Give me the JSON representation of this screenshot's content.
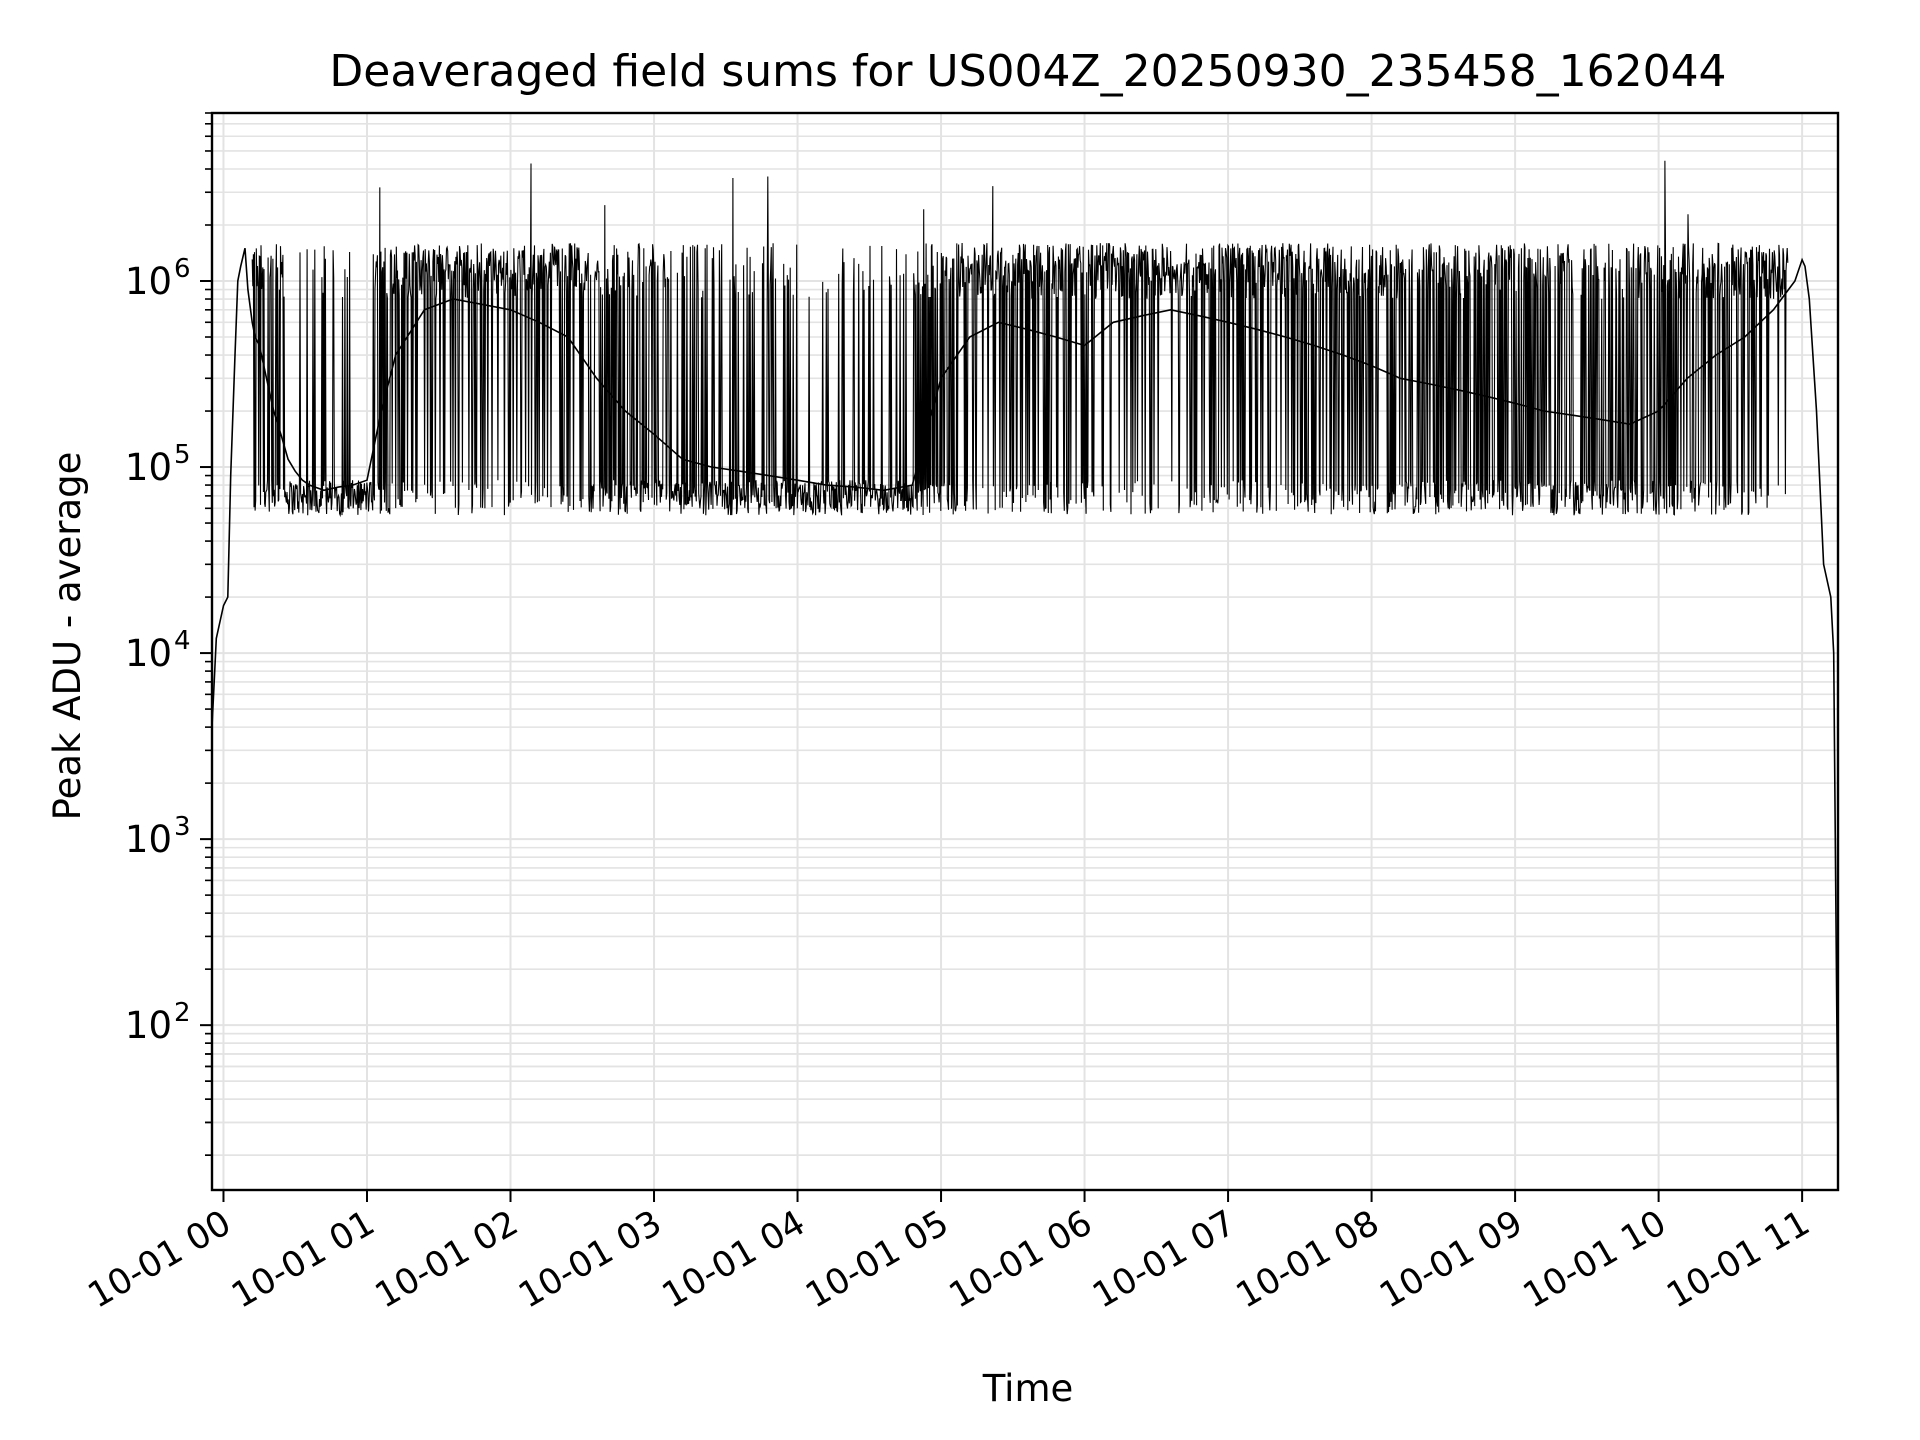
{
  "chart_data": {
    "type": "line",
    "title": "Deaveraged field sums for US004Z_20250930_235458_162044",
    "xlabel": "Time",
    "ylabel": "Peak ADU - average",
    "yscale": "log",
    "ylim": [
      13,
      8000000
    ],
    "xlim_hours": [
      -0.08,
      11.25
    ],
    "grid": true,
    "line_color": "#000000",
    "grid_color": "#e3e3e3",
    "x_tick_labels": [
      "10-01 00",
      "10-01 01",
      "10-01 02",
      "10-01 03",
      "10-01 04",
      "10-01 05",
      "10-01 06",
      "10-01 07",
      "10-01 08",
      "10-01 09",
      "10-01 10",
      "10-01 11"
    ],
    "y_ticks": [
      {
        "base": "10",
        "exp": "2",
        "value": 100
      },
      {
        "base": "10",
        "exp": "3",
        "value": 1000
      },
      {
        "base": "10",
        "exp": "4",
        "value": 10000
      },
      {
        "base": "10",
        "exp": "5",
        "value": 100000
      },
      {
        "base": "10",
        "exp": "6",
        "value": 1000000
      }
    ],
    "series": [
      {
        "values_description_skipped": true,
        "x_hours": [
          -0.08,
          -0.05,
          0.0,
          0.03,
          0.05,
          0.08,
          0.1,
          0.12,
          0.15,
          0.17,
          0.2,
          0.22,
          0.25,
          0.3,
          0.35,
          0.4,
          0.45,
          0.5,
          0.55,
          0.6,
          0.7,
          0.8,
          0.9,
          1.0,
          1.1,
          1.2,
          1.4,
          1.6,
          1.8,
          2.0,
          2.2,
          2.4,
          2.6,
          2.8,
          3.0,
          3.2,
          3.4,
          3.6,
          3.8,
          4.0,
          4.2,
          4.4,
          4.6,
          4.8,
          5.0,
          5.2,
          5.4,
          5.6,
          5.8,
          6.0,
          6.2,
          6.4,
          6.6,
          6.8,
          7.0,
          7.2,
          7.4,
          7.6,
          7.8,
          8.0,
          8.2,
          8.4,
          8.6,
          8.8,
          9.0,
          9.2,
          9.4,
          9.6,
          9.8,
          10.0,
          10.2,
          10.4,
          10.6,
          10.8,
          10.95,
          11.0,
          11.02,
          11.05,
          11.1,
          11.15,
          11.2,
          11.22,
          11.25
        ],
        "y": [
          4000,
          12000,
          18000,
          20000,
          90000,
          400000,
          1000000,
          1200000,
          1500000,
          900000,
          600000,
          500000,
          450000,
          300000,
          200000,
          150000,
          110000,
          95000,
          85000,
          80000,
          75000,
          78000,
          80000,
          85000,
          200000,
          400000,
          700000,
          800000,
          750000,
          700000,
          600000,
          500000,
          300000,
          200000,
          150000,
          110000,
          100000,
          95000,
          90000,
          85000,
          80000,
          78000,
          75000,
          80000,
          300000,
          500000,
          600000,
          550000,
          500000,
          450000,
          600000,
          650000,
          700000,
          650000,
          600000,
          550000,
          500000,
          450000,
          400000,
          350000,
          300000,
          280000,
          260000,
          240000,
          220000,
          200000,
          190000,
          180000,
          170000,
          200000,
          300000,
          400000,
          500000,
          700000,
          1000000,
          1300000,
          1200000,
          800000,
          200000,
          30000,
          20000,
          10000,
          20
        ]
      }
    ]
  }
}
